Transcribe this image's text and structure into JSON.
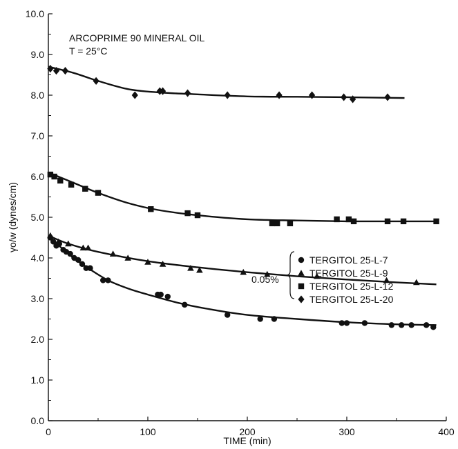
{
  "chart_data": {
    "type": "scatter",
    "xlabel": "TIME (min)",
    "ylabel": "γo/w (dynes/cm)",
    "xlim": [
      0,
      400
    ],
    "ylim": [
      0,
      10
    ],
    "x_ticks": [
      "0",
      "100",
      "200",
      "300",
      "400"
    ],
    "y_ticks": [
      "0.0",
      "1.0",
      "2.0",
      "3.0",
      "4.0",
      "5.0",
      "6.0",
      "7.0",
      "8.0",
      "9.0",
      "10.0"
    ],
    "annotations": [
      "ARCOPRIME 90 MINERAL OIL",
      "T = 25°C"
    ],
    "legend_group_label": "0.05%",
    "grid": false,
    "series": [
      {
        "name": "TERGITOL 25-L-7",
        "marker": "circle",
        "points": [
          [
            2,
            4.5
          ],
          [
            5,
            4.4
          ],
          [
            8,
            4.3
          ],
          [
            11,
            4.35
          ],
          [
            15,
            4.2
          ],
          [
            18,
            4.15
          ],
          [
            22,
            4.1
          ],
          [
            26,
            4.0
          ],
          [
            30,
            3.95
          ],
          [
            34,
            3.85
          ],
          [
            38,
            3.75
          ],
          [
            42,
            3.75
          ],
          [
            55,
            3.45
          ],
          [
            60,
            3.45
          ],
          [
            110,
            3.1
          ],
          [
            113,
            3.1
          ],
          [
            120,
            3.05
          ],
          [
            137,
            2.85
          ],
          [
            180,
            2.6
          ],
          [
            213,
            2.5
          ],
          [
            227,
            2.5
          ],
          [
            295,
            2.4
          ],
          [
            300,
            2.4
          ],
          [
            318,
            2.4
          ],
          [
            345,
            2.35
          ],
          [
            355,
            2.35
          ],
          [
            365,
            2.35
          ],
          [
            380,
            2.35
          ],
          [
            387,
            2.3
          ]
        ],
        "curve": [
          [
            0,
            4.55
          ],
          [
            20,
            4.1
          ],
          [
            40,
            3.75
          ],
          [
            60,
            3.45
          ],
          [
            80,
            3.25
          ],
          [
            100,
            3.1
          ],
          [
            130,
            2.9
          ],
          [
            160,
            2.75
          ],
          [
            200,
            2.6
          ],
          [
            250,
            2.5
          ],
          [
            300,
            2.42
          ],
          [
            350,
            2.37
          ],
          [
            390,
            2.35
          ]
        ]
      },
      {
        "name": "TERGITOL 25-L-9",
        "marker": "triangle",
        "points": [
          [
            2,
            4.55
          ],
          [
            10,
            4.4
          ],
          [
            20,
            4.35
          ],
          [
            35,
            4.25
          ],
          [
            40,
            4.25
          ],
          [
            65,
            4.1
          ],
          [
            80,
            4.0
          ],
          [
            100,
            3.9
          ],
          [
            115,
            3.85
          ],
          [
            143,
            3.75
          ],
          [
            152,
            3.7
          ],
          [
            196,
            3.65
          ],
          [
            220,
            3.6
          ],
          [
            270,
            3.55
          ],
          [
            340,
            3.45
          ],
          [
            370,
            3.4
          ]
        ],
        "curve": [
          [
            0,
            4.55
          ],
          [
            20,
            4.35
          ],
          [
            50,
            4.15
          ],
          [
            100,
            3.92
          ],
          [
            150,
            3.77
          ],
          [
            200,
            3.65
          ],
          [
            250,
            3.55
          ],
          [
            300,
            3.47
          ],
          [
            350,
            3.4
          ],
          [
            390,
            3.35
          ]
        ]
      },
      {
        "name": "TERGITOL 25-L-12",
        "marker": "square",
        "points": [
          [
            2,
            6.05
          ],
          [
            6,
            6.0
          ],
          [
            12,
            5.9
          ],
          [
            23,
            5.8
          ],
          [
            37,
            5.7
          ],
          [
            50,
            5.6
          ],
          [
            103,
            5.2
          ],
          [
            140,
            5.1
          ],
          [
            150,
            5.05
          ],
          [
            225,
            4.85
          ],
          [
            230,
            4.85
          ],
          [
            243,
            4.85
          ],
          [
            290,
            4.95
          ],
          [
            302,
            4.95
          ],
          [
            307,
            4.9
          ],
          [
            341,
            4.9
          ],
          [
            357,
            4.9
          ],
          [
            390,
            4.9
          ]
        ],
        "curve": [
          [
            0,
            6.1
          ],
          [
            25,
            5.85
          ],
          [
            50,
            5.6
          ],
          [
            80,
            5.35
          ],
          [
            110,
            5.18
          ],
          [
            150,
            5.05
          ],
          [
            200,
            4.95
          ],
          [
            250,
            4.92
          ],
          [
            300,
            4.9
          ],
          [
            350,
            4.9
          ],
          [
            390,
            4.9
          ]
        ]
      },
      {
        "name": "TERGITOL 25-L-20",
        "marker": "diamond",
        "points": [
          [
            2,
            8.65
          ],
          [
            8,
            8.6
          ],
          [
            17,
            8.6
          ],
          [
            48,
            8.35
          ],
          [
            87,
            8.0
          ],
          [
            112,
            8.1
          ],
          [
            115,
            8.1
          ],
          [
            140,
            8.05
          ],
          [
            180,
            8.0
          ],
          [
            232,
            8.0
          ],
          [
            265,
            8.0
          ],
          [
            297,
            7.95
          ],
          [
            306,
            7.9
          ],
          [
            341,
            7.95
          ]
        ],
        "curve": [
          [
            0,
            8.7
          ],
          [
            25,
            8.55
          ],
          [
            50,
            8.35
          ],
          [
            80,
            8.15
          ],
          [
            110,
            8.07
          ],
          [
            150,
            8.02
          ],
          [
            200,
            7.97
          ],
          [
            250,
            7.96
          ],
          [
            300,
            7.95
          ],
          [
            358,
            7.93
          ]
        ]
      }
    ]
  }
}
